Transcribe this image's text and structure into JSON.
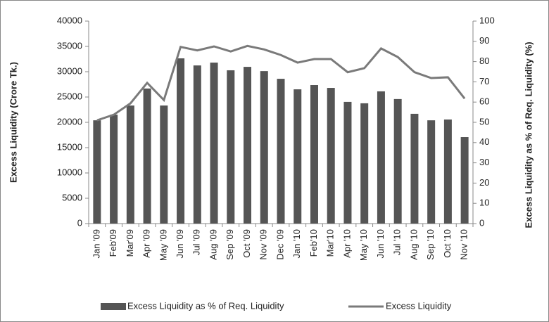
{
  "chart_data": {
    "type": "bar-line",
    "y_label": "Excess Liquidity (Crore Tk.)",
    "y2_label": "Excess Liquidity as % of Req. Liquidity (%)",
    "categories": [
      "Jan '09",
      "Feb'09",
      "Mar'09",
      "Apr '09",
      "May '09",
      "Jun '09",
      "Jul '09",
      "Aug '09",
      "Sep '09",
      "Oct '09",
      "Nov '09",
      "Dec '09",
      "Jan '10",
      "Feb'10",
      "Mar'10",
      "Apr '10",
      "May '10",
      "Jun '10",
      "Jul '10",
      "Aug '10",
      "Sep '10",
      "Oct '10",
      "Nov '10"
    ],
    "series": [
      {
        "name": "Excess Liquidity as % of Req. Liquidity",
        "type": "bar",
        "axis": "y2",
        "color": "#555555",
        "values": [
          51,
          53.8,
          58.3,
          66.7,
          58.3,
          81.6,
          78.1,
          79.5,
          75.7,
          77.4,
          75.3,
          71.5,
          66.3,
          68.4,
          67,
          60.1,
          59.4,
          65.3,
          61.5,
          54.2,
          51,
          51.4,
          42.7
        ]
      },
      {
        "name": "Excess Liquidity",
        "type": "line",
        "axis": "y",
        "color": "#7a7a7a",
        "values": [
          20400,
          21500,
          23750,
          27800,
          24400,
          34900,
          34200,
          35000,
          34000,
          35100,
          34400,
          33300,
          31800,
          32500,
          32500,
          29900,
          30700,
          34600,
          32900,
          29900,
          28750,
          28900,
          24700
        ]
      }
    ],
    "ylim": [
      0,
      40000
    ],
    "yticks": [
      0,
      5000,
      10000,
      15000,
      20000,
      25000,
      30000,
      35000,
      40000
    ],
    "y2lim": [
      0,
      100
    ],
    "y2ticks": [
      0,
      10,
      20,
      30,
      40,
      50,
      60,
      70,
      80,
      90,
      100
    ],
    "grid": false
  }
}
